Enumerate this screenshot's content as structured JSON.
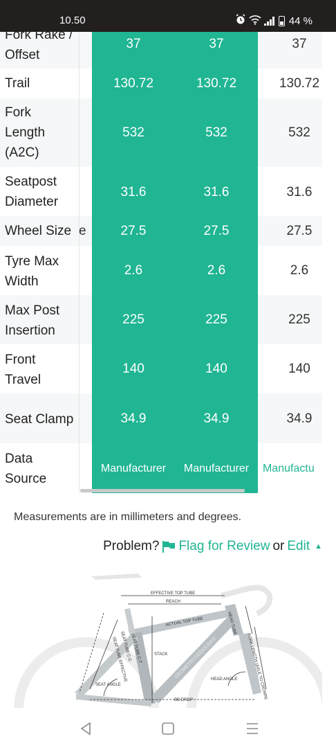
{
  "status_bar": {
    "time": "10.50",
    "battery": "44 %",
    "icons": [
      "alarm-icon",
      "wifi-icon",
      "signal-icon",
      "battery-icon"
    ]
  },
  "table": {
    "rows": [
      {
        "label": "Fork Rake / Offset",
        "values": [
          "37",
          "37",
          "37"
        ]
      },
      {
        "label": "Trail",
        "values": [
          "130.72",
          "130.72",
          "130.72"
        ]
      },
      {
        "label": "Fork Length (A2C)",
        "values": [
          "532",
          "532",
          "532"
        ]
      },
      {
        "label": "Seatpost Diameter",
        "values": [
          "31.6",
          "31.6",
          "31.6"
        ]
      },
      {
        "label": "Wheel Size",
        "values": [
          "27.5",
          "27.5",
          "27.5"
        ],
        "peek": "e"
      },
      {
        "label": "Tyre Max Width",
        "values": [
          "2.6",
          "2.6",
          "2.6"
        ]
      },
      {
        "label": "Max Post Insertion",
        "values": [
          "225",
          "225",
          "225"
        ]
      },
      {
        "label": "Front Travel",
        "values": [
          "140",
          "140",
          "140"
        ]
      },
      {
        "label": "Seat Clamp",
        "values": [
          "34.9",
          "34.9",
          "34.9"
        ]
      },
      {
        "label": "Data Source",
        "values": [
          "Manufacturer",
          "Manufacturer",
          "Manufactu"
        ]
      }
    ]
  },
  "note": "Measurements are in millimeters and degrees.",
  "problem": {
    "prefix": "Problem?",
    "flag_label": "Flag for Review",
    "or": "or",
    "edit_label": "Edit"
  },
  "diagram": {
    "labels": {
      "effective_top_tube": "EFFECTIVE TOP TUBE",
      "reach": "REACH",
      "actual_top_tube": "ACTUAL TOP TUBE",
      "head_tube": "HEAD TUBE",
      "fork_length": "FORK LENGTH (AXLE TO CROWN)",
      "stack": "STACK",
      "seat_tube_ct": "SEAT TUBE C-T",
      "seat_tube_cc": "SEAT TUBE C-C",
      "seat_tube_effective": "SEAT TUBE EFFECTIVE",
      "seat_angle": "SEAT ANGLE",
      "head_angle": "HEAD ANGLE",
      "bb_drop": "BB DROP",
      "watermark": "GEOMETRYGEEKS.BIKE"
    }
  },
  "colors": {
    "accent": "#20b593",
    "status_bar": "#231f1f",
    "row_alt": "#f6f7f8"
  }
}
